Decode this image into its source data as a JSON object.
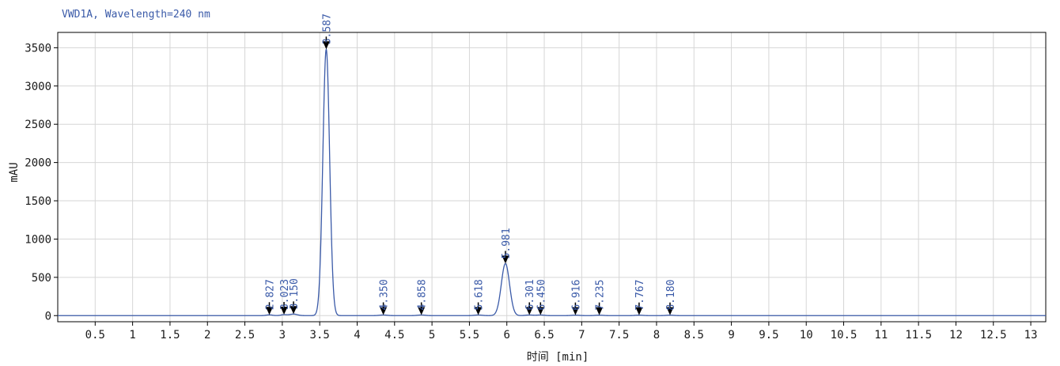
{
  "chart_data": {
    "type": "line",
    "title": "VWD1A, Wavelength=240 nm",
    "xlabel": "时间 [min]",
    "ylabel": "mAU",
    "xlim": [
      0,
      13.2
    ],
    "ylim": [
      -80,
      3700
    ],
    "xticks": [
      0.5,
      1,
      1.5,
      2,
      2.5,
      3,
      3.5,
      4,
      4.5,
      5,
      5.5,
      6,
      6.5,
      7,
      7.5,
      8,
      8.5,
      9,
      9.5,
      10,
      10.5,
      11,
      11.5,
      12,
      12.5,
      13
    ],
    "xtick_labels": [
      "0.5",
      "1",
      "1.5",
      "2",
      "2.5",
      "3",
      "3.5",
      "4",
      "4.5",
      "5",
      "5.5",
      "6",
      "6.5",
      "7",
      "7.5",
      "8",
      "8.5",
      "9",
      "9.5",
      "10",
      "10.5",
      "11",
      "11.5",
      "12",
      "12.5",
      "13"
    ],
    "yticks": [
      0,
      500,
      1000,
      1500,
      2000,
      2500,
      3000,
      3500
    ],
    "ytick_labels": [
      "0",
      "500",
      "1000",
      "1500",
      "2000",
      "2500",
      "3000",
      "3500"
    ],
    "grid": true,
    "series": [
      {
        "color": "#3a5aa8",
        "peaks": [
          {
            "rt": 2.827,
            "height": 10,
            "width": 0.04
          },
          {
            "rt": 3.023,
            "height": 12,
            "width": 0.04
          },
          {
            "rt": 3.15,
            "height": 20,
            "width": 0.05
          },
          {
            "rt": 3.587,
            "height": 3480,
            "width": 0.045
          },
          {
            "rt": 4.35,
            "height": 8,
            "width": 0.05
          },
          {
            "rt": 4.858,
            "height": 8,
            "width": 0.05
          },
          {
            "rt": 5.618,
            "height": 8,
            "width": 0.05
          },
          {
            "rt": 5.981,
            "height": 680,
            "width": 0.055
          },
          {
            "rt": 6.301,
            "height": 8,
            "width": 0.05
          },
          {
            "rt": 6.45,
            "height": 8,
            "width": 0.05
          },
          {
            "rt": 6.916,
            "height": 6,
            "width": 0.05
          },
          {
            "rt": 7.235,
            "height": 6,
            "width": 0.05
          },
          {
            "rt": 7.767,
            "height": 6,
            "width": 0.05
          },
          {
            "rt": 8.18,
            "height": 6,
            "width": 0.05
          }
        ]
      }
    ],
    "peak_labels": [
      {
        "rt": 2.827,
        "label": "2.827"
      },
      {
        "rt": 3.023,
        "label": "3.023"
      },
      {
        "rt": 3.15,
        "label": "3.150"
      },
      {
        "rt": 3.587,
        "label": "3.587"
      },
      {
        "rt": 4.35,
        "label": "4.350"
      },
      {
        "rt": 4.858,
        "label": "4.858"
      },
      {
        "rt": 5.618,
        "label": "5.618"
      },
      {
        "rt": 5.981,
        "label": "5.981"
      },
      {
        "rt": 6.301,
        "label": "6.301"
      },
      {
        "rt": 6.45,
        "label": "6.450"
      },
      {
        "rt": 6.916,
        "label": "6.916"
      },
      {
        "rt": 7.235,
        "label": "7.235"
      },
      {
        "rt": 7.767,
        "label": "7.767"
      },
      {
        "rt": 8.18,
        "label": "8.180"
      }
    ]
  }
}
